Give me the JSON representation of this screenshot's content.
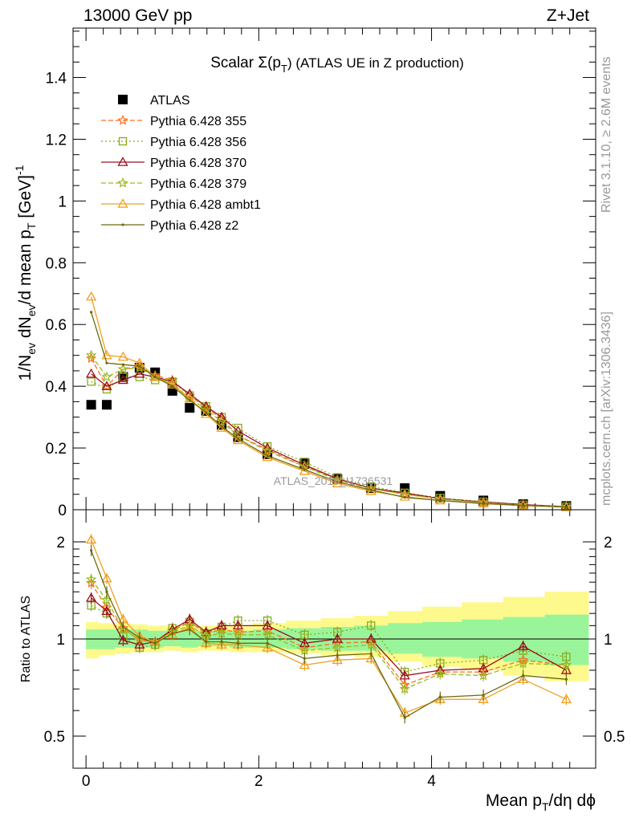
{
  "header": {
    "energy": "13000 GeV pp",
    "process": "Z+Jet"
  },
  "side_text": {
    "rivet": "Rivet 3.1.10, ≥ 2.6M events",
    "mcplots": "mcplots.cern.ch [arXiv:1306.3436]"
  },
  "plot_title": {
    "prefix": "Scalar Σ(p",
    "sub": "T",
    "suffix": ") (ATLAS UE in Z production)"
  },
  "watermark": "ATLAS_2019_I1736531",
  "axes": {
    "y_main_label": "1/N_ev dN_ev/d mean p_T [GeV]^-1",
    "y_ratio_label": "Ratio to ATLAS",
    "x_label": "Mean p_T/dη dϕ"
  },
  "chart_data": [
    {
      "type": "scatter",
      "panel": "main",
      "xlim": [
        -0.15,
        5.9
      ],
      "ylim": [
        0,
        1.56
      ],
      "y_ticks": [
        "0",
        "0.2",
        "0.4",
        "0.6",
        "0.8",
        "1",
        "1.2",
        "1.4"
      ],
      "x": [
        0.06,
        0.24,
        0.43,
        0.62,
        0.8,
        1.0,
        1.2,
        1.39,
        1.57,
        1.76,
        2.1,
        2.53,
        2.91,
        3.3,
        3.69,
        4.1,
        4.6,
        5.06,
        5.56
      ],
      "series": [
        {
          "name": "ATLAS",
          "color": "#000000",
          "marker": "square",
          "values": [
            0.34,
            0.34,
            0.43,
            0.46,
            0.445,
            0.385,
            0.33,
            0.32,
            0.275,
            0.235,
            0.18,
            0.15,
            0.1,
            0.07,
            0.07,
            0.045,
            0.03,
            0.018,
            0.012
          ]
        },
        {
          "name": "Pythia 6.428 355",
          "color": "#ff6e1c",
          "marker": "star",
          "dash": "6,3",
          "values": [
            0.49,
            0.4,
            0.455,
            0.465,
            0.435,
            0.42,
            0.37,
            0.33,
            0.295,
            0.24,
            0.195,
            0.14,
            0.1,
            0.07,
            0.05,
            0.036,
            0.026,
            0.016,
            0.01
          ]
        },
        {
          "name": "Pythia 6.428 356",
          "color": "#8aaa1c",
          "marker": "open-square",
          "dash": "2,3",
          "values": [
            0.415,
            0.39,
            0.43,
            0.43,
            0.42,
            0.415,
            0.37,
            0.335,
            0.3,
            0.265,
            0.205,
            0.155,
            0.105,
            0.075,
            0.055,
            0.038,
            0.026,
            0.016,
            0.01
          ]
        },
        {
          "name": "Pythia 6.428 370",
          "color": "#9b1020",
          "marker": "open-triangle",
          "dash": "",
          "values": [
            0.44,
            0.4,
            0.42,
            0.44,
            0.43,
            0.415,
            0.375,
            0.335,
            0.3,
            0.255,
            0.2,
            0.145,
            0.1,
            0.07,
            0.054,
            0.036,
            0.025,
            0.017,
            0.01
          ]
        },
        {
          "name": "Pythia 6.428 379",
          "color": "#9aba20",
          "marker": "star",
          "dash": "6,3",
          "values": [
            0.5,
            0.43,
            0.455,
            0.46,
            0.43,
            0.41,
            0.36,
            0.325,
            0.285,
            0.24,
            0.19,
            0.14,
            0.095,
            0.068,
            0.05,
            0.035,
            0.023,
            0.015,
            0.01
          ]
        },
        {
          "name": "Pythia 6.428 ambt1",
          "color": "#f0a020",
          "marker": "open-triangle",
          "dash": "",
          "values": [
            0.69,
            0.5,
            0.495,
            0.475,
            0.43,
            0.405,
            0.36,
            0.31,
            0.265,
            0.225,
            0.17,
            0.125,
            0.085,
            0.06,
            0.042,
            0.03,
            0.02,
            0.013,
            0.008
          ]
        },
        {
          "name": "Pythia 6.428 z2",
          "color": "#6b6b10",
          "marker": "dot",
          "dash": "",
          "values": [
            0.64,
            0.475,
            0.47,
            0.465,
            0.43,
            0.4,
            0.355,
            0.315,
            0.27,
            0.23,
            0.175,
            0.13,
            0.09,
            0.064,
            0.04,
            0.03,
            0.02,
            0.014,
            0.009
          ]
        }
      ]
    },
    {
      "type": "line",
      "panel": "ratio",
      "xlim": [
        -0.15,
        5.9
      ],
      "ylim": [
        0.34,
        2.34
      ],
      "y_ticks": [
        "0.5",
        "1",
        "2"
      ],
      "x_ticks": [
        "0",
        "2",
        "4"
      ],
      "x": [
        0.06,
        0.24,
        0.43,
        0.62,
        0.8,
        1.0,
        1.2,
        1.39,
        1.57,
        1.76,
        2.1,
        2.53,
        2.91,
        3.3,
        3.69,
        4.1,
        4.6,
        5.06,
        5.56
      ],
      "reference": 1,
      "band_inner": {
        "lo": [
          0.93,
          0.93,
          0.94,
          0.94,
          0.94,
          0.95,
          0.94,
          0.95,
          0.95,
          0.94,
          0.94,
          0.93,
          0.92,
          0.92,
          0.9,
          0.88,
          0.87,
          0.85,
          0.83
        ],
        "hi": [
          1.07,
          1.07,
          1.07,
          1.07,
          1.06,
          1.06,
          1.06,
          1.06,
          1.06,
          1.06,
          1.07,
          1.08,
          1.09,
          1.1,
          1.12,
          1.13,
          1.15,
          1.17,
          1.19
        ]
      },
      "band_outer": {
        "lo": [
          0.87,
          0.89,
          0.9,
          0.91,
          0.91,
          0.92,
          0.91,
          0.92,
          0.92,
          0.91,
          0.91,
          0.9,
          0.89,
          0.88,
          0.85,
          0.82,
          0.8,
          0.77,
          0.74
        ]
      },
      "band_outer_hi": [
        1.13,
        1.12,
        1.12,
        1.11,
        1.1,
        1.1,
        1.1,
        1.1,
        1.1,
        1.1,
        1.12,
        1.14,
        1.16,
        1.18,
        1.22,
        1.26,
        1.3,
        1.35,
        1.4
      ],
      "series": [
        {
          "name": "Pythia 6.428 355",
          "color": "#ff6e1c",
          "marker": "star",
          "dash": "6,3",
          "values": [
            1.49,
            1.25,
            1.08,
            0.99,
            0.98,
            1.06,
            1.13,
            1.04,
            1.07,
            1.05,
            1.06,
            0.94,
            0.97,
            0.98,
            0.72,
            0.79,
            0.79,
            0.86,
            0.83
          ]
        },
        {
          "name": "Pythia 6.428 356",
          "color": "#8aaa1c",
          "marker": "open-square",
          "dash": "2,3",
          "values": [
            1.27,
            1.2,
            1.02,
            0.94,
            0.96,
            1.08,
            1.13,
            1.04,
            1.09,
            1.14,
            1.14,
            1.03,
            1.05,
            1.1,
            0.79,
            0.84,
            0.86,
            0.92,
            0.88
          ]
        },
        {
          "name": "Pythia 6.428 370",
          "color": "#9b1020",
          "marker": "open-triangle",
          "dash": "",
          "values": [
            1.34,
            1.22,
            0.99,
            0.96,
            0.98,
            1.07,
            1.15,
            1.05,
            1.1,
            1.1,
            1.1,
            0.97,
            1.0,
            1.0,
            0.77,
            0.8,
            0.81,
            0.95,
            0.8
          ]
        },
        {
          "name": "Pythia 6.428 379",
          "color": "#9aba20",
          "marker": "star",
          "dash": "6,3",
          "values": [
            1.53,
            1.32,
            1.07,
            1.0,
            0.98,
            1.05,
            1.1,
            1.02,
            1.04,
            1.03,
            1.03,
            0.92,
            0.94,
            0.96,
            0.7,
            0.78,
            0.77,
            0.84,
            0.83
          ]
        },
        {
          "name": "Pythia 6.428 ambt1",
          "color": "#f0a020",
          "marker": "open-triangle",
          "dash": "",
          "values": [
            2.03,
            1.54,
            1.15,
            1.02,
            0.98,
            1.03,
            1.09,
            0.97,
            0.96,
            0.96,
            0.94,
            0.83,
            0.86,
            0.87,
            0.59,
            0.65,
            0.65,
            0.75,
            0.65
          ]
        },
        {
          "name": "Pythia 6.428 z2",
          "color": "#6b6b10",
          "marker": "dot",
          "dash": "",
          "values": [
            1.88,
            1.4,
            1.09,
            1.01,
            0.97,
            1.04,
            1.07,
            0.98,
            0.98,
            0.97,
            0.97,
            0.87,
            0.89,
            0.9,
            0.57,
            0.66,
            0.67,
            0.77,
            0.75
          ]
        }
      ]
    }
  ]
}
